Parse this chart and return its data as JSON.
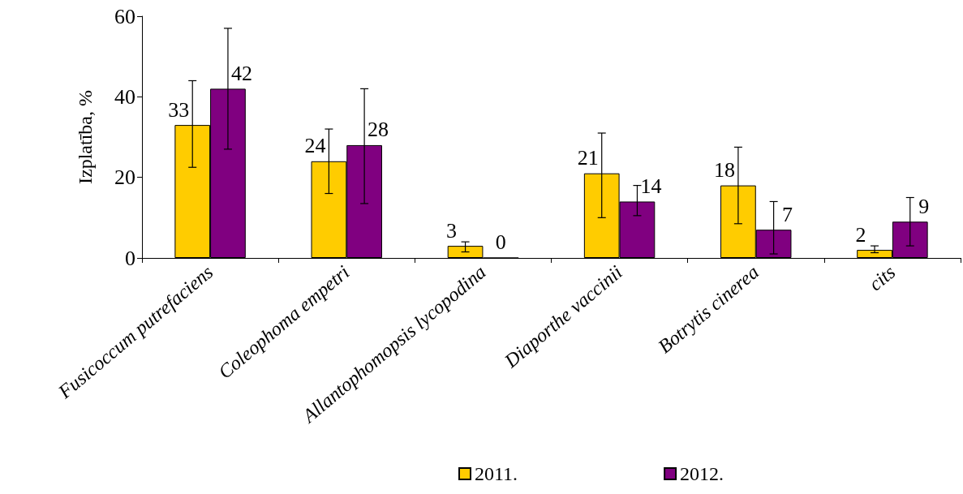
{
  "chart_data": {
    "type": "bar",
    "ylabel": "Izplatība, %",
    "categories": [
      "Fusicoccum putrefaciens",
      "Coleophoma empetri",
      "Allantophomopsis lycopodina",
      "Diaporthe vaccinii",
      "Botrytis cinerea",
      "cits"
    ],
    "series": [
      {
        "name": "2011.",
        "color": "#ffcc00",
        "values": [
          33,
          24,
          3,
          21,
          18,
          2
        ],
        "errors": [
          [
            22.5,
            44
          ],
          [
            16,
            32
          ],
          [
            1.5,
            4
          ],
          [
            10,
            31
          ],
          [
            8.5,
            27.5
          ],
          [
            1.3,
            3
          ]
        ]
      },
      {
        "name": "2012.",
        "color": "#800080",
        "values": [
          42,
          28,
          0,
          14,
          7,
          9
        ],
        "errors": [
          [
            27,
            57
          ],
          [
            13.5,
            42
          ],
          null,
          [
            10.5,
            18
          ],
          [
            1,
            14
          ],
          [
            3,
            15
          ]
        ]
      }
    ],
    "ylim": [
      0,
      60
    ],
    "yticks": [
      0,
      20,
      40,
      60
    ],
    "grid": false,
    "legend": "bottom",
    "data_labels": true
  }
}
